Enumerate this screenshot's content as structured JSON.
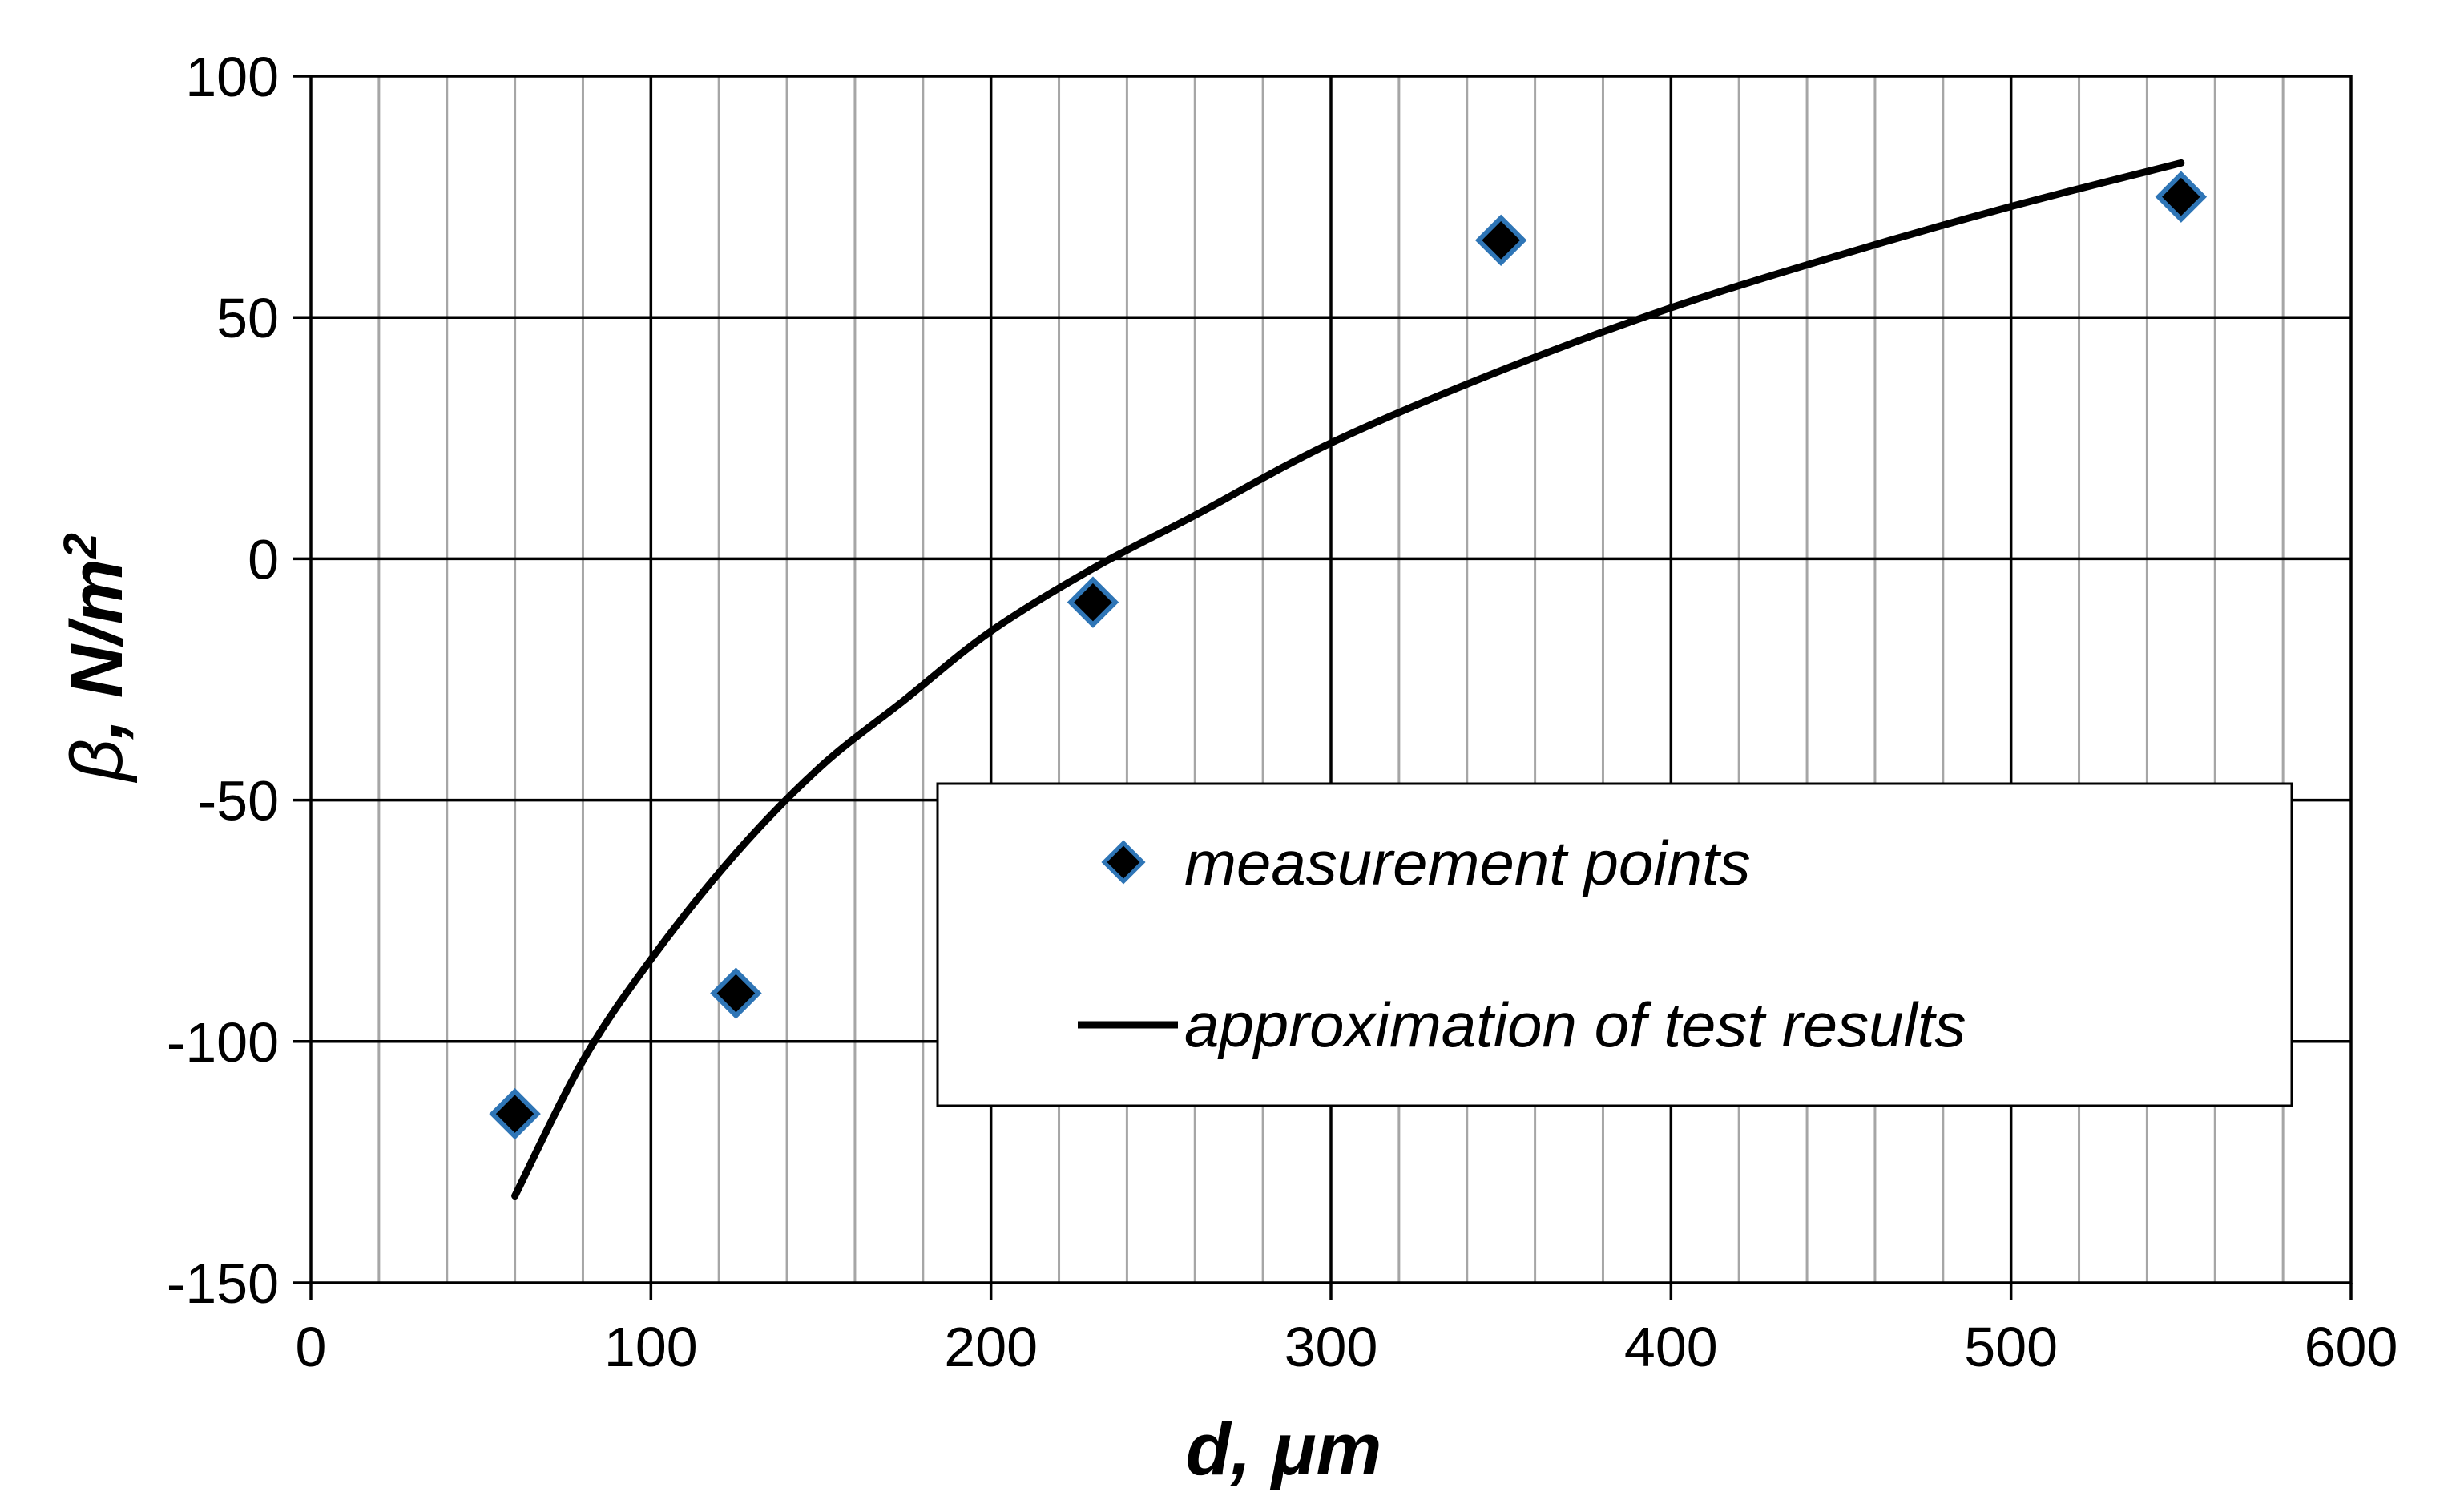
{
  "chart_data": {
    "type": "scatter",
    "xlabel": "d, μm",
    "ylabel_prefix": "β",
    "ylabel_rest": ", N/m",
    "ylabel_sup": "2",
    "xlim": [
      0,
      600
    ],
    "ylim": [
      -150,
      100
    ],
    "x_major_ticks": [
      0,
      100,
      200,
      300,
      400,
      500,
      600
    ],
    "x_minor_step": 20,
    "y_major_ticks": [
      -150,
      -100,
      -50,
      0,
      50,
      100
    ],
    "x_tick_labels": [
      "0",
      "100",
      "200",
      "300",
      "400",
      "500",
      "600"
    ],
    "y_tick_labels": [
      "-150",
      "-100",
      "-50",
      "0",
      "50",
      "100"
    ],
    "grid": true,
    "legend_position": "bottom-right",
    "series": [
      {
        "name": "measurement points",
        "kind": "scatter",
        "marker": "diamond",
        "color": "#000000",
        "edge_color": "#2E75B6",
        "x": [
          60,
          125,
          230,
          350,
          550
        ],
        "y": [
          -115,
          -90,
          -9,
          66,
          75
        ]
      },
      {
        "name": "approximation of test results",
        "kind": "line",
        "color": "#000000",
        "x": [
          60,
          80,
          100,
          125,
          150,
          175,
          200,
          230,
          260,
          300,
          350,
          400,
          450,
          500,
          550
        ],
        "y": [
          -132,
          -104,
          -83,
          -61,
          -43,
          -29,
          -15,
          -2,
          9,
          24,
          39,
          52,
          63,
          73,
          82
        ]
      }
    ]
  }
}
